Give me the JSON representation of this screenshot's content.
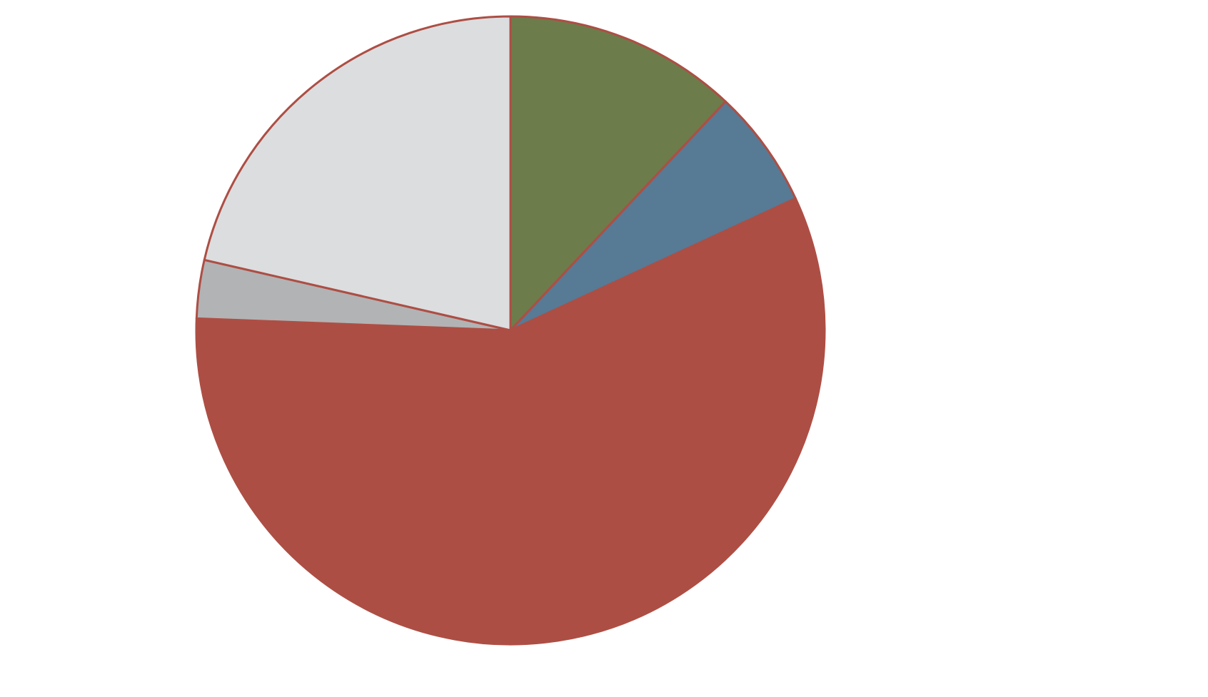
{
  "chart_data": {
    "type": "pie",
    "values": [
      12.0,
      6.1,
      57.5,
      3.0,
      21.4
    ],
    "colors": [
      "#6d7c4b",
      "#577a95",
      "#ad4e44",
      "#b2b3b4",
      "#dcdddf"
    ],
    "edge_color": "#ad4e44"
  }
}
